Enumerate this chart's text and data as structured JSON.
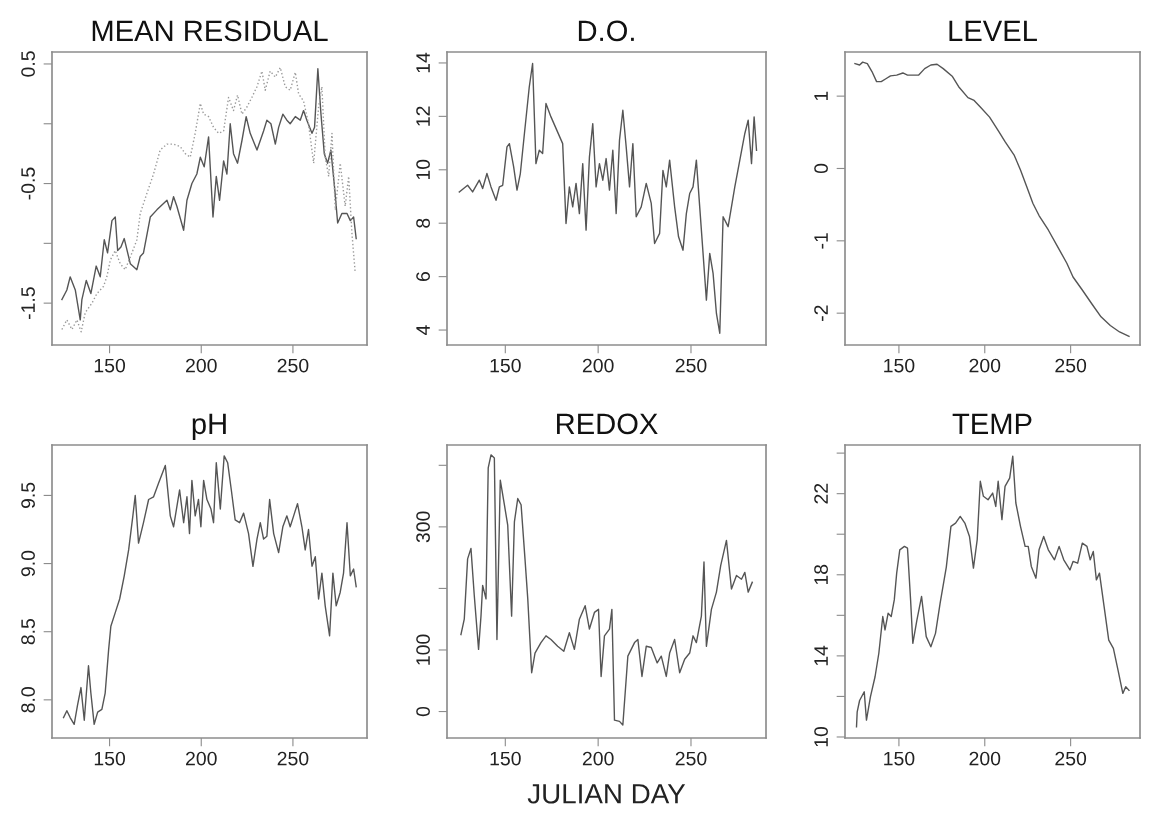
{
  "chart_data": [
    {
      "type": "line",
      "title": "MEAN RESIDUAL",
      "xlim": [
        118.6,
        290.4
      ],
      "ylim": [
        -1.85,
        0.6
      ],
      "xticks": [
        150,
        200,
        250
      ],
      "yticks": [
        -1.5,
        {
          "value": -1,
          "label": null
        },
        -0.5,
        {
          "value": 0,
          "label": null
        },
        0.5
      ],
      "series": [
        {
          "color": "#555555",
          "line_style": "solid",
          "x": [
            124,
            126.7,
            128.5,
            131.3,
            134,
            134.9,
            137.3,
            139.8,
            142.7,
            144.9,
            147.1,
            148.9,
            151.3,
            153.1,
            154.4,
            156.2,
            158,
            161.3,
            164.9,
            166.7,
            168.5,
            172.2,
            175.8,
            181.3,
            183.1,
            184.9,
            186.7,
            190.4,
            192.2,
            194.9,
            197.6,
            199.5,
            201.6,
            204,
            206.4,
            208.2,
            210,
            212.2,
            214,
            215.8,
            217.6,
            219.8,
            222.2,
            224.5,
            226.7,
            230.4,
            234,
            235.8,
            238,
            240.4,
            242.2,
            244.5,
            246.7,
            248.5,
            251.3,
            254,
            255.8,
            257.6,
            260.4,
            261.8,
            263.6,
            265.3,
            267.1,
            268.9,
            270.7,
            272.7,
            274.4,
            276.7,
            279.5,
            281.3,
            283.1,
            284.5
          ],
          "values": [
            -1.47,
            -1.39,
            -1.28,
            -1.39,
            -1.64,
            -1.47,
            -1.31,
            -1.42,
            -1.19,
            -1.28,
            -0.97,
            -1.08,
            -0.81,
            -0.78,
            -1.06,
            -1.03,
            -0.96,
            -1.17,
            -1.22,
            -1.11,
            -1.08,
            -0.78,
            -0.72,
            -0.64,
            -0.72,
            -0.61,
            -0.69,
            -0.89,
            -0.64,
            -0.5,
            -0.42,
            -0.28,
            -0.36,
            -0.11,
            -0.78,
            -0.44,
            -0.64,
            -0.31,
            -0.42,
            0.0,
            -0.25,
            -0.33,
            -0.14,
            0.06,
            -0.08,
            -0.22,
            -0.06,
            0.03,
            0.0,
            -0.17,
            -0.03,
            0.08,
            0.03,
            0.0,
            0.06,
            0.03,
            0.11,
            0.03,
            -0.08,
            -0.03,
            0.46,
            0.08,
            -0.25,
            -0.33,
            -0.22,
            -0.53,
            -0.83,
            -0.75,
            -0.75,
            -0.81,
            -0.78,
            -0.96
          ]
        },
        {
          "color": "#999999",
          "line_style": "dotted",
          "x": [
            124,
            126.7,
            129.5,
            132.2,
            134.5,
            136.7,
            140.4,
            143.1,
            146.7,
            148.5,
            150.4,
            153.1,
            155.8,
            158.5,
            162.2,
            164.9,
            166.7,
            170.4,
            174,
            177.6,
            181.3,
            184.9,
            188.5,
            191.3,
            194,
            196.7,
            199.5,
            201.3,
            204,
            206.7,
            209.5,
            212.2,
            214.9,
            217.6,
            219.8,
            222.2,
            224.9,
            227.6,
            230.4,
            233.1,
            234.9,
            237.6,
            240.4,
            243.1,
            245.8,
            248.5,
            251.3,
            253.1,
            255.8,
            258.5,
            261.3,
            264,
            265.8,
            267.6,
            269.5,
            271.3,
            273.1,
            275.8,
            278.5,
            280.4,
            282.2,
            284
          ],
          "values": [
            -1.72,
            -1.64,
            -1.72,
            -1.64,
            -1.74,
            -1.58,
            -1.5,
            -1.42,
            -1.36,
            -1.28,
            -1.14,
            -1.06,
            -1.17,
            -1.22,
            -1.08,
            -0.97,
            -0.75,
            -0.58,
            -0.42,
            -0.22,
            -0.17,
            -0.17,
            -0.19,
            -0.25,
            -0.28,
            -0.08,
            0.17,
            0.08,
            0.06,
            -0.03,
            -0.08,
            -0.06,
            0.22,
            0.11,
            0.24,
            0.08,
            0.14,
            0.22,
            0.31,
            0.44,
            0.28,
            0.44,
            0.39,
            0.47,
            0.31,
            0.28,
            0.43,
            0.25,
            0.19,
            0.0,
            -0.33,
            0.14,
            0.31,
            -0.28,
            -0.44,
            -0.08,
            -0.72,
            -0.33,
            -0.69,
            -0.44,
            -0.92,
            -1.25
          ]
        }
      ]
    },
    {
      "type": "line",
      "title": "D.O.",
      "xlim": [
        118.6,
        290.4
      ],
      "ylim": [
        3.44,
        14.41
      ],
      "xticks": [
        150,
        200,
        250
      ],
      "yticks": [
        4,
        6,
        8,
        10,
        12,
        14
      ],
      "series": [
        {
          "color": "#555555",
          "line_style": "solid",
          "x": [
            125.2,
            129.7,
            132.4,
            136,
            137.8,
            140.1,
            142.3,
            145,
            146.8,
            148.6,
            150.9,
            152.2,
            154.5,
            156.3,
            158.1,
            160.3,
            162.9,
            164.7,
            166.5,
            168.3,
            170.1,
            171.9,
            174.6,
            180.9,
            182.7,
            184.5,
            186.3,
            188.1,
            189.9,
            191.7,
            193.5,
            195.3,
            197.1,
            198.9,
            200.7,
            202.5,
            204.3,
            206.1,
            207.9,
            209.7,
            211.5,
            213.3,
            215.1,
            216.9,
            218.7,
            220.5,
            223.2,
            225.9,
            228.6,
            230.4,
            233.1,
            234.9,
            236.7,
            238.5,
            241.2,
            243.3,
            245.7,
            247.5,
            249.3,
            251.1,
            252.9,
            254.7,
            256.5,
            258.3,
            260.1,
            261.9,
            263.7,
            265.5,
            267.3,
            270,
            271.8,
            273.6,
            276.3,
            279,
            280.8,
            282.6,
            284,
            285.3
          ],
          "values": [
            9.17,
            9.42,
            9.17,
            9.61,
            9.3,
            9.86,
            9.36,
            8.86,
            9.36,
            9.42,
            10.86,
            10.98,
            10.11,
            9.24,
            9.86,
            11.36,
            13.1,
            13.98,
            10.23,
            10.73,
            10.61,
            12.48,
            11.98,
            10.98,
            7.99,
            9.36,
            8.61,
            9.49,
            8.36,
            10.23,
            7.74,
            10.48,
            11.73,
            9.36,
            10.23,
            9.61,
            10.42,
            9.24,
            10.73,
            8.36,
            11.11,
            12.23,
            10.86,
            9.36,
            10.98,
            8.24,
            8.61,
            9.49,
            8.74,
            7.24,
            7.62,
            9.98,
            9.36,
            10.36,
            8.61,
            7.49,
            6.99,
            8.36,
            9.11,
            9.36,
            10.36,
            8.61,
            6.87,
            5.12,
            6.87,
            6.12,
            4.62,
            3.88,
            8.24,
            7.87,
            8.61,
            9.36,
            10.36,
            11.36,
            11.86,
            10.23,
            11.98,
            10.73
          ]
        }
      ]
    },
    {
      "type": "line",
      "title": "LEVEL",
      "xlim": [
        118.6,
        290.4
      ],
      "ylim": [
        -2.44,
        1.61
      ],
      "xticks": [
        150,
        200,
        250
      ],
      "yticks": [
        -2,
        -1,
        0,
        1
      ],
      "series": [
        {
          "color": "#555555",
          "line_style": "solid",
          "x": [
            124.4,
            127.1,
            128.9,
            131.6,
            134.3,
            137,
            139.7,
            142.4,
            145.1,
            148.7,
            152.3,
            155,
            157.7,
            161.4,
            165,
            168.6,
            172.2,
            175.8,
            181.2,
            184.8,
            190.2,
            193.8,
            197.4,
            202.8,
            208.2,
            211.8,
            217.2,
            220.8,
            224.4,
            228,
            231.6,
            237,
            242.4,
            247.8,
            251.4,
            256.8,
            262.3,
            267.7,
            273.1,
            278.5,
            284
          ],
          "values": [
            1.45,
            1.43,
            1.47,
            1.45,
            1.34,
            1.2,
            1.2,
            1.24,
            1.28,
            1.29,
            1.32,
            1.29,
            1.29,
            1.29,
            1.38,
            1.43,
            1.44,
            1.38,
            1.27,
            1.13,
            0.98,
            0.94,
            0.85,
            0.71,
            0.51,
            0.37,
            0.18,
            -0.02,
            -0.25,
            -0.48,
            -0.65,
            -0.85,
            -1.08,
            -1.31,
            -1.5,
            -1.68,
            -1.87,
            -2.05,
            -2.17,
            -2.26,
            -2.32
          ]
        }
      ]
    },
    {
      "type": "line",
      "title": "pH",
      "xlim": [
        118.6,
        290.4
      ],
      "ylim": [
        7.72,
        9.87
      ],
      "xticks": [
        150,
        200,
        250
      ],
      "yticks": [
        {
          "value": 8,
          "label": "8.0"
        },
        8.5,
        {
          "value": 9,
          "label": "9.0"
        },
        9.5
      ],
      "series": [
        {
          "color": "#555555",
          "line_style": "solid",
          "x": [
            124.9,
            126.7,
            128.5,
            130.7,
            132.5,
            134.4,
            136.2,
            138.5,
            139.8,
            141.6,
            143.5,
            145.8,
            147.6,
            149.5,
            150.7,
            153.1,
            155.5,
            158,
            160.4,
            162.7,
            164,
            165.8,
            168.5,
            171.3,
            174,
            176.7,
            180.4,
            183.1,
            184.9,
            188.2,
            190.4,
            192.2,
            193.6,
            194.9,
            196.7,
            198.5,
            199.8,
            201.3,
            203.1,
            205.3,
            206.7,
            208.2,
            210.4,
            212.5,
            214.4,
            216.4,
            218.5,
            220.9,
            223.1,
            225.8,
            228.2,
            230.4,
            232.2,
            234,
            235.8,
            237.3,
            239.5,
            242.2,
            244.5,
            246.7,
            248.5,
            250.4,
            252.5,
            254.9,
            256.7,
            258.5,
            260.4,
            262.2,
            264,
            265.8,
            267.6,
            270,
            271.8,
            273.6,
            275.8,
            277.6,
            279.5,
            281.3,
            283.1,
            284.5
          ],
          "values": [
            7.87,
            7.92,
            7.87,
            7.82,
            7.96,
            8.09,
            7.85,
            8.25,
            8.05,
            7.82,
            7.91,
            7.93,
            8.05,
            8.37,
            8.54,
            8.64,
            8.74,
            8.91,
            9.1,
            9.35,
            9.5,
            9.15,
            9.3,
            9.47,
            9.49,
            9.59,
            9.72,
            9.35,
            9.27,
            9.54,
            9.3,
            9.49,
            9.22,
            9.61,
            9.35,
            9.47,
            9.27,
            9.61,
            9.47,
            9.4,
            9.3,
            9.74,
            9.4,
            9.79,
            9.74,
            9.54,
            9.32,
            9.3,
            9.37,
            9.22,
            8.98,
            9.18,
            9.3,
            9.18,
            9.2,
            9.47,
            9.22,
            9.08,
            9.27,
            9.35,
            9.27,
            9.35,
            9.44,
            9.27,
            9.1,
            9.25,
            8.98,
            9.05,
            8.74,
            8.93,
            8.69,
            8.47,
            8.93,
            8.69,
            8.79,
            8.93,
            9.3,
            8.91,
            8.96,
            8.83
          ]
        }
      ]
    },
    {
      "type": "line",
      "title": "REDOX",
      "xlabel": "JULIAN DAY",
      "xlim": [
        118.6,
        290.4
      ],
      "ylim": [
        -43,
        433
      ],
      "xticks": [
        150,
        200,
        250
      ],
      "yticks": [
        0,
        100,
        {
          "value": 200,
          "label": null
        },
        300,
        {
          "value": 400,
          "label": null
        }
      ],
      "series": [
        {
          "color": "#555555",
          "line_style": "solid",
          "x": [
            126.1,
            127.9,
            129.7,
            131.5,
            133.3,
            135.6,
            136.9,
            137.8,
            139.6,
            140.8,
            142.3,
            144.1,
            145.5,
            147.3,
            149.5,
            151.3,
            153.4,
            154.9,
            156.7,
            158.5,
            160.6,
            162.1,
            164.2,
            166,
            169.2,
            171.9,
            174.6,
            178.2,
            181.5,
            184.5,
            187.2,
            189.9,
            193,
            195.3,
            198,
            200.2,
            201.6,
            203.4,
            206.1,
            207.4,
            208.8,
            211.5,
            213.3,
            216,
            219.6,
            221.4,
            223.6,
            225.9,
            228.6,
            231.8,
            234,
            236.7,
            238.5,
            241.2,
            243.9,
            246.6,
            249.3,
            251.1,
            252.9,
            255.6,
            257,
            258.3,
            261,
            263.7,
            266,
            269.1,
            271.8,
            274.5,
            277.2,
            279,
            280.8,
            283
          ],
          "values": [
            125,
            150,
            248,
            265,
            188,
            101,
            155,
            205,
            183,
            396,
            417,
            412,
            117,
            376,
            336,
            303,
            155,
            308,
            346,
            336,
            248,
            183,
            63,
            95,
            112,
            123,
            117,
            106,
            98,
            128,
            101,
            150,
            172,
            134,
            161,
            166,
            57,
            123,
            134,
            166,
            -14,
            -16,
            -22,
            90,
            112,
            117,
            57,
            106,
            104,
            79,
            90,
            57,
            95,
            117,
            63,
            85,
            95,
            123,
            112,
            155,
            243,
            106,
            166,
            194,
            237,
            278,
            199,
            221,
            215,
            226,
            194,
            210
          ]
        }
      ]
    },
    {
      "type": "line",
      "title": "TEMP",
      "xlim": [
        118.6,
        290.4
      ],
      "ylim": [
        9.95,
        24.4
      ],
      "xticks": [
        150,
        200,
        250
      ],
      "yticks": [
        10,
        {
          "value": 12,
          "label": null
        },
        14,
        {
          "value": 16,
          "label": null
        },
        18,
        {
          "value": 20,
          "label": null
        },
        22,
        {
          "value": 24,
          "label": null
        }
      ],
      "series": [
        {
          "color": "#555555",
          "line_style": "solid",
          "x": [
            125.3,
            125.7,
            127.1,
            129.8,
            131.1,
            133.4,
            136.1,
            138.3,
            140.6,
            141.9,
            143.7,
            145.5,
            147.3,
            148.7,
            150.5,
            153.2,
            155,
            156.8,
            158.1,
            160.5,
            163.2,
            165.9,
            168.6,
            171.3,
            174,
            177.6,
            180.3,
            183,
            185.7,
            188.4,
            191.1,
            193.4,
            195.6,
            197.4,
            199.2,
            201.9,
            204.6,
            206.4,
            207.8,
            210,
            211.8,
            214.5,
            216.3,
            218.1,
            220.8,
            223.5,
            225.3,
            227.1,
            229.8,
            231.6,
            234.3,
            237,
            240.6,
            243.3,
            246,
            249.6,
            251.4,
            254.1,
            256.8,
            259.5,
            261.4,
            263.2,
            265,
            266.8,
            269.5,
            272.2,
            274.9,
            277.6,
            280.4,
            282.1,
            284
          ],
          "values": [
            10.5,
            11.24,
            11.8,
            12.23,
            10.83,
            11.98,
            12.97,
            14.13,
            15.94,
            15.28,
            16.1,
            15.94,
            16.76,
            18.08,
            19.23,
            19.4,
            19.31,
            16.76,
            14.62,
            15.77,
            16.93,
            14.95,
            14.45,
            15.11,
            16.6,
            18.38,
            20.39,
            20.55,
            20.88,
            20.55,
            19.89,
            18.33,
            19.73,
            22.61,
            21.87,
            21.7,
            22.03,
            21.37,
            22.61,
            20.72,
            22.36,
            22.77,
            23.85,
            21.54,
            20.39,
            19.4,
            19.4,
            18.41,
            17.83,
            19.23,
            19.89,
            19.23,
            18.74,
            19.4,
            18.74,
            18.24,
            18.66,
            18.57,
            19.56,
            19.4,
            18.74,
            19.15,
            17.75,
            18.08,
            16.43,
            14.78,
            14.37,
            13.3,
            12.15,
            12.48,
            12.3
          ]
        }
      ]
    }
  ]
}
